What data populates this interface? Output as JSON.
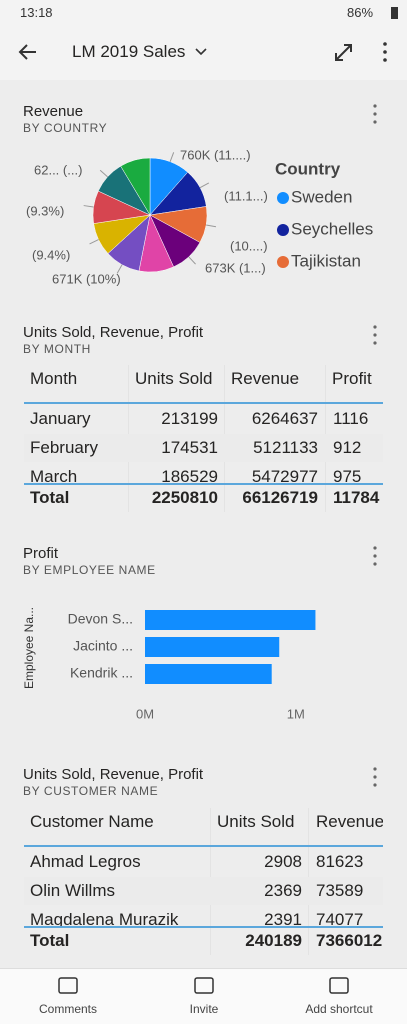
{
  "status_bar": {
    "time": "13:18",
    "battery": "86%"
  },
  "header": {
    "title": "LM 2019 Sales"
  },
  "revenue_card": {
    "title": "Revenue",
    "subtitle": "BY COUNTRY",
    "chart_type": "pie",
    "values": [
      11.5,
      11.1,
      10.4,
      10.2,
      9.9,
      10.1,
      9.4,
      9.3,
      9.5,
      8.6
    ],
    "labels": [
      "760K (11....)",
      "(11.1...)",
      "(10....)",
      "673K (1...)",
      null,
      "671K (10%)",
      "(9.4%)",
      "(9.3%)",
      "62... (...)",
      null
    ],
    "colors": [
      "#118dff",
      "#12239e",
      "#e66c37",
      "#6b007b",
      "#e044a7",
      "#744ec2",
      "#d9b300",
      "#d64550",
      "#197278",
      "#1aab40"
    ],
    "legend_title": "Country",
    "legend": [
      "Sweden",
      "Seychelles",
      "Tajikistan"
    ]
  },
  "month_card": {
    "title": "Units Sold, Revenue, Profit",
    "subtitle": "BY MONTH",
    "table": {
      "columns": [
        "Month",
        "Units Sold",
        "Revenue",
        "Profit"
      ],
      "rows": [
        [
          "January",
          "213199",
          "6264637",
          "1116"
        ],
        [
          "February",
          "174531",
          "5121133",
          "912"
        ],
        [
          "March",
          "186529",
          "5472977",
          "975"
        ]
      ],
      "total": [
        "Total",
        "2250810",
        "66126719",
        "11784"
      ]
    }
  },
  "employee_card": {
    "title": "Profit",
    "subtitle": "BY EMPLOYEE NAME",
    "chart_data": {
      "type": "bar",
      "orientation": "horizontal",
      "y_label": "Employee Na...",
      "categories": [
        "Devon S...",
        "Jacinto ...",
        "Kendrik ..."
      ],
      "values": [
        1130000,
        890000,
        840000
      ],
      "color": "#118dff",
      "xlim": [
        0,
        1200000
      ],
      "xticks": [
        {
          "value": 0,
          "label": "0M"
        },
        {
          "value": 1000000,
          "label": "1M"
        }
      ]
    }
  },
  "customer_card": {
    "title": "Units Sold, Revenue, Profit",
    "subtitle": "BY CUSTOMER NAME",
    "table": {
      "columns": [
        "Customer Name",
        "Units Sold",
        "Revenue"
      ],
      "rows": [
        [
          "Ahmad Legros",
          "2908",
          "81623"
        ],
        [
          "Olin Willms",
          "2369",
          "73589"
        ],
        [
          "Magdalena Murazik",
          "2391",
          "74077"
        ]
      ],
      "total": [
        "Total",
        "240189",
        "7366012"
      ]
    }
  },
  "bottom_nav": [
    "Comments",
    "Invite",
    "Add shortcut"
  ]
}
